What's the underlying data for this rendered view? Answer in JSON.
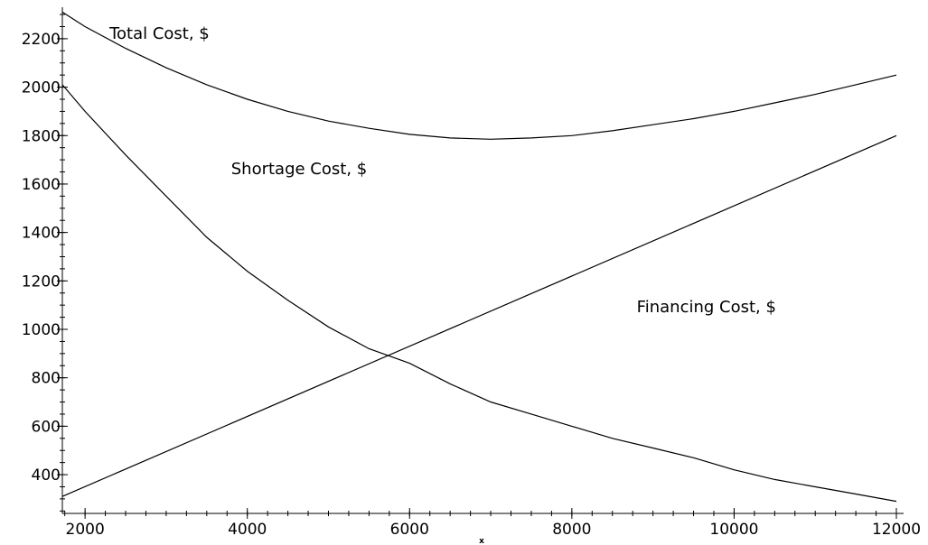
{
  "chart_data": {
    "type": "line",
    "xlabel": "x",
    "ylabel": "",
    "xlim": [
      1720,
      12000
    ],
    "ylim": [
      240,
      2330
    ],
    "x_ticks": [
      2000,
      4000,
      6000,
      8000,
      10000,
      12000
    ],
    "y_ticks": [
      400,
      600,
      800,
      1000,
      1200,
      1400,
      1600,
      1800,
      2000,
      2200
    ],
    "grid": false,
    "legend": "none",
    "series": [
      {
        "name": "Total Cost, $",
        "x": [
          1720,
          2000,
          2500,
          3000,
          3500,
          4000,
          4500,
          5000,
          5500,
          6000,
          6500,
          7000,
          7500,
          8000,
          8500,
          9000,
          9500,
          10000,
          10500,
          11000,
          11500,
          12000
        ],
        "y": [
          2310,
          2250,
          2160,
          2080,
          2010,
          1950,
          1900,
          1860,
          1830,
          1805,
          1790,
          1785,
          1790,
          1800,
          1820,
          1845,
          1870,
          1900,
          1935,
          1970,
          2010,
          2050
        ]
      },
      {
        "name": "Shortage Cost, $",
        "x": [
          1720,
          2000,
          2500,
          3000,
          3500,
          4000,
          4500,
          5000,
          5500,
          6000,
          6500,
          7000,
          7500,
          8000,
          8500,
          9000,
          9500,
          10000,
          10500,
          11000,
          11500,
          12000
        ],
        "y": [
          2010,
          1900,
          1720,
          1550,
          1380,
          1240,
          1120,
          1010,
          920,
          860,
          775,
          700,
          650,
          600,
          550,
          510,
          470,
          420,
          380,
          350,
          320,
          290
        ]
      },
      {
        "name": "Financing Cost, $",
        "x": [
          1720,
          12000
        ],
        "y": [
          310,
          1800
        ]
      }
    ],
    "annotations": [
      {
        "text": "Total Cost, $",
        "x": 2300,
        "y": 2200
      },
      {
        "text": "Shortage Cost, $",
        "x": 3800,
        "y": 1640
      },
      {
        "text": "Financing Cost, $",
        "x": 8800,
        "y": 1070
      }
    ]
  }
}
